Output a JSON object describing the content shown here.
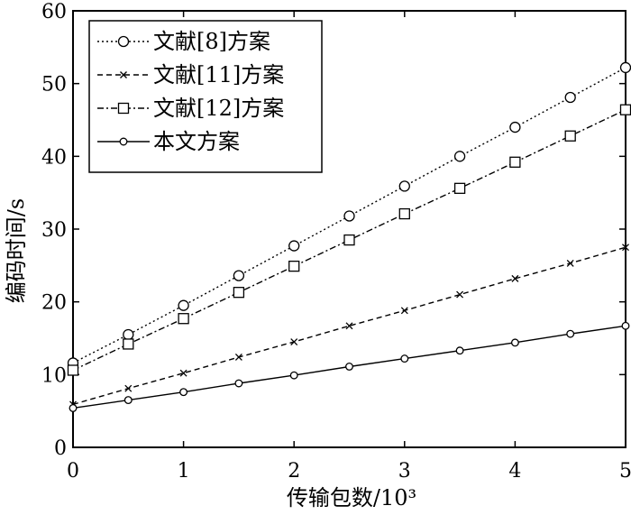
{
  "chart_data": {
    "type": "line",
    "xlabel": "传输包数/10³",
    "ylabel": "编码时间/s",
    "xlim": [
      0,
      5
    ],
    "ylim": [
      0,
      60
    ],
    "xticks": [
      "0",
      "1",
      "2",
      "3",
      "4",
      "5"
    ],
    "yticks": [
      "0",
      "10",
      "20",
      "30",
      "40",
      "50",
      "60"
    ],
    "grid": false,
    "legend_position": "top-left",
    "x": [
      0,
      0.5,
      1,
      1.5,
      2,
      2.5,
      3,
      3.5,
      4,
      4.5,
      5
    ],
    "series": [
      {
        "name": "文献[8]方案",
        "style": "dotted",
        "marker": "circle",
        "values": [
          11.6,
          15.5,
          19.5,
          23.6,
          27.7,
          31.8,
          35.9,
          40.0,
          44.0,
          48.1,
          52.2
        ]
      },
      {
        "name": "文献[11]方案",
        "style": "dashed",
        "marker": "x",
        "values": [
          5.9,
          8.1,
          10.2,
          12.4,
          14.5,
          16.7,
          18.8,
          21.0,
          23.2,
          25.3,
          27.5
        ]
      },
      {
        "name": "文献[12]方案",
        "style": "dashdot",
        "marker": "square",
        "values": [
          10.6,
          14.2,
          17.7,
          21.3,
          24.9,
          28.5,
          32.1,
          35.6,
          39.2,
          42.8,
          46.4
        ]
      },
      {
        "name": "本文方案",
        "style": "solid",
        "marker": "small-circle",
        "values": [
          5.4,
          6.5,
          7.6,
          8.8,
          9.9,
          11.1,
          12.2,
          13.3,
          14.4,
          15.6,
          16.7
        ]
      }
    ]
  }
}
